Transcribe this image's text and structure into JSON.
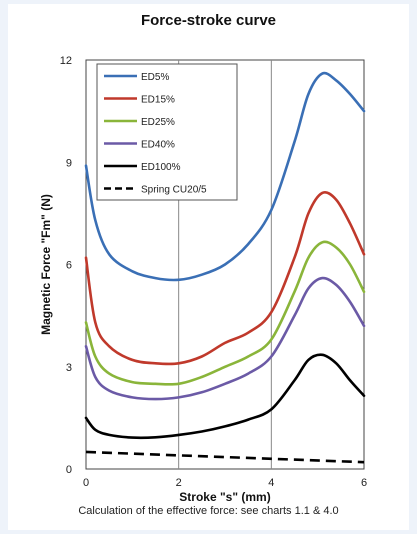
{
  "chart_data": {
    "type": "line",
    "title": "Force-stroke curve",
    "xlabel": "Stroke \"s\" (mm)",
    "ylabel": "Magnetic Force \"Fm\" (N)",
    "xlim": [
      0,
      6
    ],
    "ylim": [
      0,
      12
    ],
    "x_ticks": [
      "0",
      "2",
      "4",
      "6"
    ],
    "y_ticks": [
      "0",
      "3",
      "6",
      "9",
      "12"
    ],
    "grid": "vertical at 2 and 4",
    "legend_position": "top-left",
    "caption": "Calculation of the effective force: see charts 1.1 & 4.0",
    "series": [
      {
        "name": "ED5%",
        "color": "#3a6fb5",
        "dash": "solid",
        "x": [
          0,
          0.2,
          0.5,
          1.0,
          1.5,
          2.0,
          2.5,
          3.0,
          3.5,
          4.0,
          4.5,
          4.8,
          5.1,
          5.4,
          5.7,
          6.0
        ],
        "y": [
          8.9,
          7.3,
          6.3,
          5.8,
          5.6,
          5.55,
          5.7,
          6.0,
          6.6,
          7.6,
          9.6,
          11.0,
          11.6,
          11.4,
          11.0,
          10.5
        ]
      },
      {
        "name": "ED15%",
        "color": "#c0392b",
        "dash": "solid",
        "x": [
          0,
          0.2,
          0.5,
          1.0,
          1.5,
          2.0,
          2.5,
          3.0,
          3.5,
          4.0,
          4.5,
          4.8,
          5.1,
          5.4,
          5.7,
          6.0
        ],
        "y": [
          6.2,
          4.3,
          3.6,
          3.2,
          3.1,
          3.1,
          3.3,
          3.7,
          4.0,
          4.6,
          6.2,
          7.5,
          8.1,
          7.9,
          7.2,
          6.3
        ]
      },
      {
        "name": "ED25%",
        "color": "#8ab53a",
        "dash": "solid",
        "x": [
          0,
          0.2,
          0.5,
          1.0,
          1.5,
          2.0,
          2.5,
          3.0,
          3.5,
          4.0,
          4.5,
          4.8,
          5.1,
          5.4,
          5.7,
          6.0
        ],
        "y": [
          4.3,
          3.3,
          2.8,
          2.55,
          2.5,
          2.5,
          2.7,
          3.0,
          3.3,
          3.8,
          5.2,
          6.2,
          6.65,
          6.5,
          6.0,
          5.2
        ]
      },
      {
        "name": "ED40%",
        "color": "#6b5aa6",
        "dash": "solid",
        "x": [
          0,
          0.2,
          0.5,
          1.0,
          1.5,
          2.0,
          2.5,
          3.0,
          3.5,
          4.0,
          4.5,
          4.8,
          5.1,
          5.4,
          5.7,
          6.0
        ],
        "y": [
          3.6,
          2.7,
          2.3,
          2.1,
          2.05,
          2.1,
          2.25,
          2.5,
          2.8,
          3.3,
          4.5,
          5.3,
          5.6,
          5.4,
          4.9,
          4.2
        ]
      },
      {
        "name": "ED100%",
        "color": "#000000",
        "dash": "solid",
        "x": [
          0,
          0.2,
          0.5,
          1.0,
          1.5,
          2.0,
          2.5,
          3.0,
          3.5,
          4.0,
          4.5,
          4.8,
          5.1,
          5.4,
          5.7,
          6.0
        ],
        "y": [
          1.5,
          1.15,
          1.0,
          0.92,
          0.93,
          1.0,
          1.1,
          1.25,
          1.45,
          1.75,
          2.6,
          3.2,
          3.35,
          3.1,
          2.6,
          2.15
        ]
      },
      {
        "name": "Spring CU20/5",
        "color": "#000000",
        "dash": "dashed",
        "x": [
          0,
          6
        ],
        "y": [
          0.5,
          0.2
        ]
      }
    ]
  }
}
